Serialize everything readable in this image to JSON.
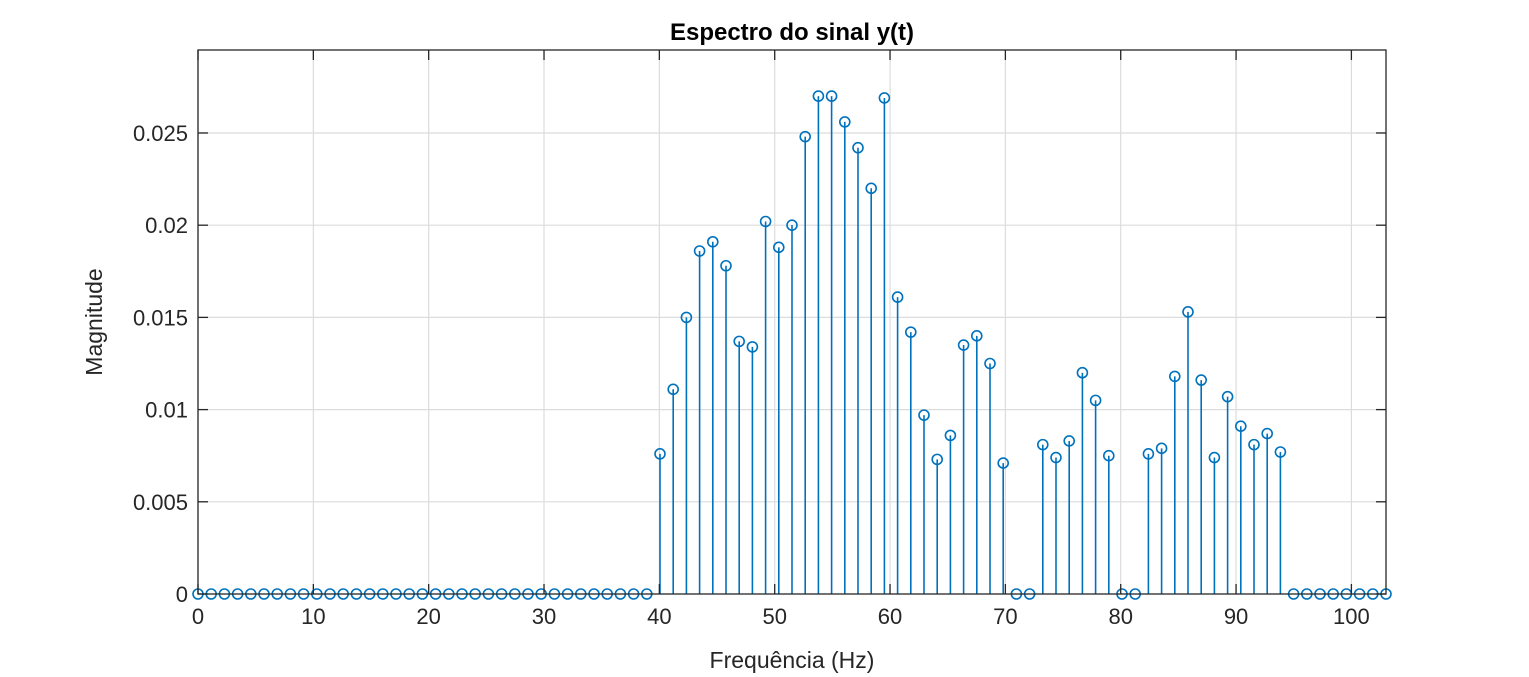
{
  "chart_data": {
    "type": "stem",
    "title": "Espectro do sinal y(t)",
    "xlabel": "Frequência (Hz)",
    "ylabel": "Magnitude",
    "xlim": [
      0,
      103
    ],
    "ylim": [
      0,
      0.0295
    ],
    "xticks": [
      0,
      10,
      20,
      30,
      40,
      50,
      60,
      70,
      80,
      90,
      100
    ],
    "xtick_labels": [
      "0",
      "10",
      "20",
      "30",
      "40",
      "50",
      "60",
      "70",
      "80",
      "90",
      "100"
    ],
    "yticks": [
      0,
      0.005,
      0.01,
      0.015,
      0.02,
      0.025
    ],
    "ytick_labels": [
      "0",
      "0.005",
      "0.01",
      "0.015",
      "0.02",
      "0.025"
    ],
    "grid": true,
    "box": true,
    "series": [
      {
        "color": "#0072BD",
        "marker": "circle-open",
        "x": [
          0,
          1.1444,
          2.2889,
          3.4333,
          4.5778,
          5.7222,
          6.8667,
          8.0111,
          9.1556,
          10.3,
          11.4444,
          12.5889,
          13.7333,
          14.8778,
          16.0222,
          17.1667,
          18.3111,
          19.4556,
          20.6,
          21.7444,
          22.8889,
          24.0333,
          25.1778,
          26.3222,
          27.4667,
          28.6111,
          29.7556,
          30.9,
          32.0444,
          33.1889,
          34.3333,
          35.4778,
          36.6222,
          37.7667,
          38.9111,
          40.0556,
          41.2,
          42.3444,
          43.4889,
          44.6333,
          45.7778,
          46.9222,
          48.0667,
          49.2111,
          50.3556,
          51.5,
          52.6444,
          53.7889,
          54.9333,
          56.0778,
          57.2222,
          58.3667,
          59.5111,
          60.6556,
          61.8,
          62.9444,
          64.0889,
          65.2333,
          66.3778,
          67.5222,
          68.6667,
          69.8111,
          70.9556,
          72.1,
          73.2444,
          74.3889,
          75.5333,
          76.6778,
          77.8222,
          78.9667,
          80.1111,
          81.2556,
          82.4,
          83.5444,
          84.6889,
          85.8333,
          86.9778,
          88.1222,
          89.2667,
          90.4111,
          91.5556,
          92.7,
          93.8444,
          94.9889,
          96.1333,
          97.2778,
          98.4222,
          99.5667,
          100.7111,
          101.8556,
          103
        ],
        "y": [
          0,
          0,
          0,
          0,
          0,
          0,
          0,
          0,
          0,
          0,
          0,
          0,
          0,
          0,
          0,
          0,
          0,
          0,
          0,
          0,
          0,
          0,
          0,
          0,
          0,
          0,
          0,
          0,
          0,
          0,
          0,
          0,
          0,
          0,
          0,
          0.0076,
          0.0111,
          0.015,
          0.0186,
          0.0191,
          0.0178,
          0.0137,
          0.0134,
          0.0202,
          0.0188,
          0.02,
          0.0248,
          0.027,
          0.027,
          0.0256,
          0.0242,
          0.022,
          0.0269,
          0.0161,
          0.0142,
          0.0097,
          0.0073,
          0.0086,
          0.0135,
          0.014,
          0.0125,
          0.0071,
          0,
          0,
          0.0081,
          0.0074,
          0.0083,
          0.012,
          0.0105,
          0.0075,
          0,
          0,
          0.0076,
          0.0079,
          0.0118,
          0.0153,
          0.0116,
          0.0074,
          0.0107,
          0.0091,
          0.0081,
          0.0087,
          0.0077,
          0,
          0,
          0,
          0,
          0,
          0,
          0,
          0
        ]
      }
    ]
  }
}
